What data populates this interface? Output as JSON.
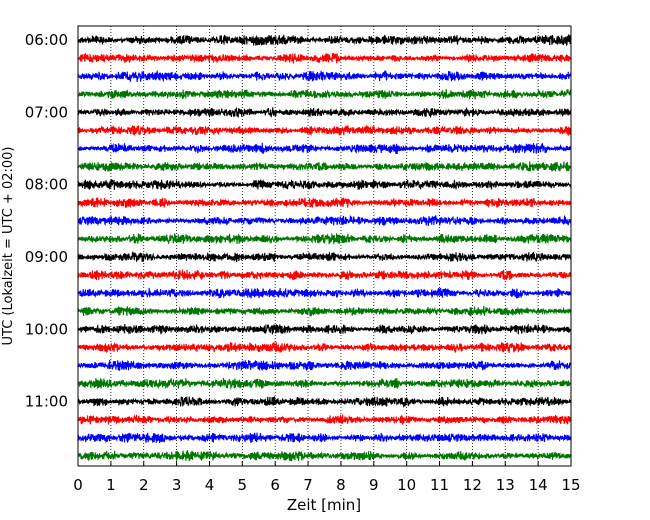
{
  "chart_data": {
    "type": "line",
    "xlabel": "Zeit  [min]",
    "ylabel": "UTC (Lokalzeit = UTC + 02:00)",
    "xlim": [
      0,
      15
    ],
    "x_ticks": [
      "0",
      "1",
      "2",
      "3",
      "4",
      "5",
      "6",
      "7",
      "8",
      "9",
      "10",
      "11",
      "12",
      "13",
      "14",
      "15"
    ],
    "y_ticks": [
      "06:00",
      "07:00",
      "08:00",
      "09:00",
      "10:00",
      "11:00"
    ],
    "grid": "vertical dotted",
    "trace_interval_min": 15,
    "trace_count": 24,
    "trace_colors": [
      "#000000",
      "#ff0000",
      "#0000ff",
      "#007700"
    ]
  }
}
